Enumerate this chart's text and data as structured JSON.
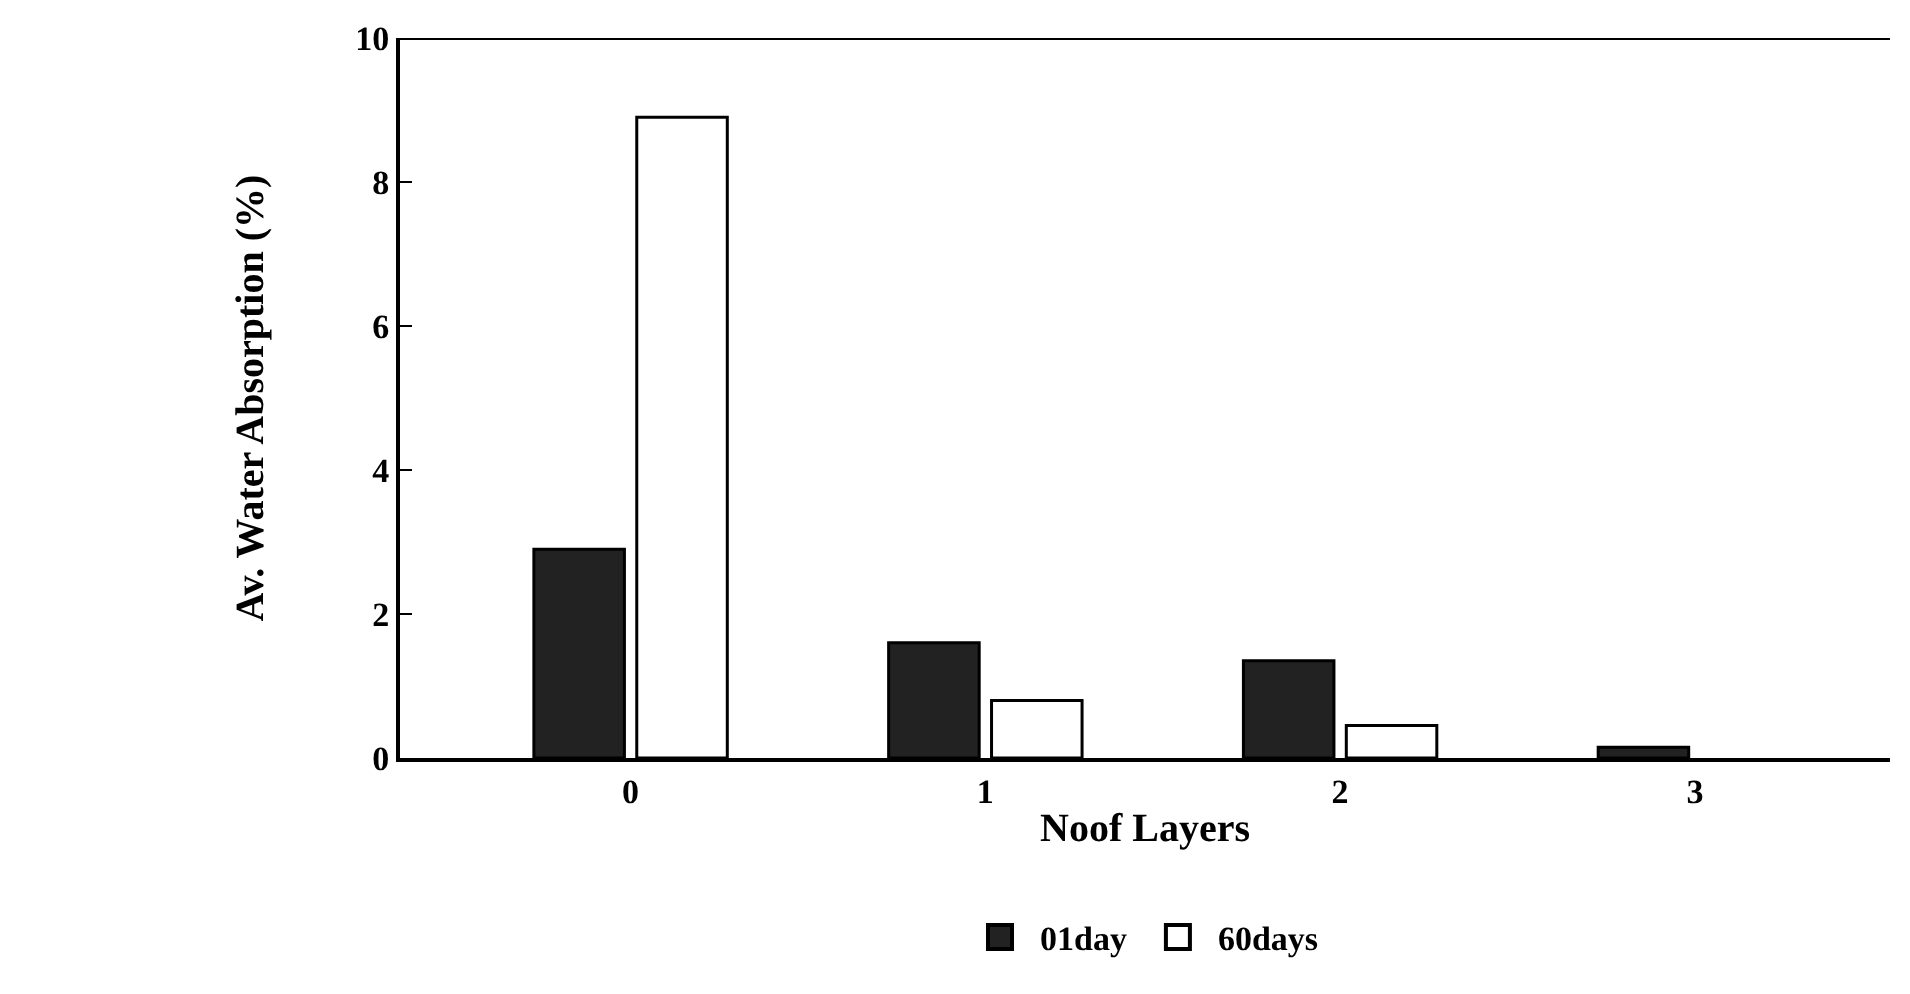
{
  "chart_data": {
    "type": "bar",
    "xlabel": "Noof Layers",
    "ylabel": "Av. Water Absorption (%)",
    "categories": [
      "0",
      "1",
      "2",
      "3"
    ],
    "series": [
      {
        "name": "01day",
        "color": "#222222",
        "values": [
          2.9,
          1.6,
          1.35,
          0.15
        ]
      },
      {
        "name": "60days",
        "color": "#ffffff",
        "values": [
          8.9,
          0.8,
          0.45,
          null
        ]
      }
    ],
    "ylim": [
      0,
      10
    ],
    "yticks": [
      0,
      2,
      4,
      6,
      8,
      10
    ],
    "legend": "bottom"
  }
}
